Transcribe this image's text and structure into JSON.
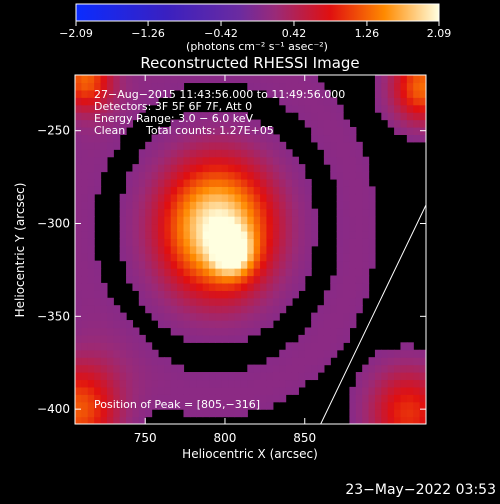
{
  "chart_data": {
    "type": "heatmap",
    "title": "Reconstructed RHESSI Image",
    "xlabel": "Heliocentric X (arcsec)",
    "ylabel": "Heliocentric Y (arcsec)",
    "xlim": [
      706,
      926
    ],
    "ylim": [
      -408,
      -220
    ],
    "x_ticks": [
      750,
      800,
      850
    ],
    "x_tick_labels": [
      "750",
      "800",
      "850"
    ],
    "y_ticks": [
      -250,
      -300,
      -350,
      -400
    ],
    "y_tick_labels": [
      "−250",
      "−300",
      "−350",
      "−400"
    ],
    "colorbar": {
      "min": -2.09,
      "max": 2.09,
      "ticks": [
        -2.09,
        -1.26,
        -0.42,
        0.42,
        1.26,
        2.09
      ],
      "tick_labels": [
        "−2.09",
        "−1.26",
        "−0.42",
        "0.42",
        "1.26",
        "2.09"
      ],
      "unit_label": "(photons cm⁻² s⁻¹ asec⁻²)"
    },
    "annotations": {
      "time_range": "27−Aug−2015 11:43:56.000 to 11:49:56.000",
      "detectors": "Detectors: 3F 5F 6F 7F, Att 0",
      "energy": "Energy Range: 3.0 − 6.0 keV",
      "clean_label": "Clean",
      "total_counts": "Total counts: 1.27E+05",
      "peak": "Position of Peak = [805,−316]"
    },
    "peak": {
      "x": 805,
      "y": -316,
      "value": 2.09
    },
    "limb_points": [
      [
        926,
        -290
      ],
      [
        860,
        -408
      ]
    ],
    "footer_date": "23−May−2022 03:53"
  }
}
